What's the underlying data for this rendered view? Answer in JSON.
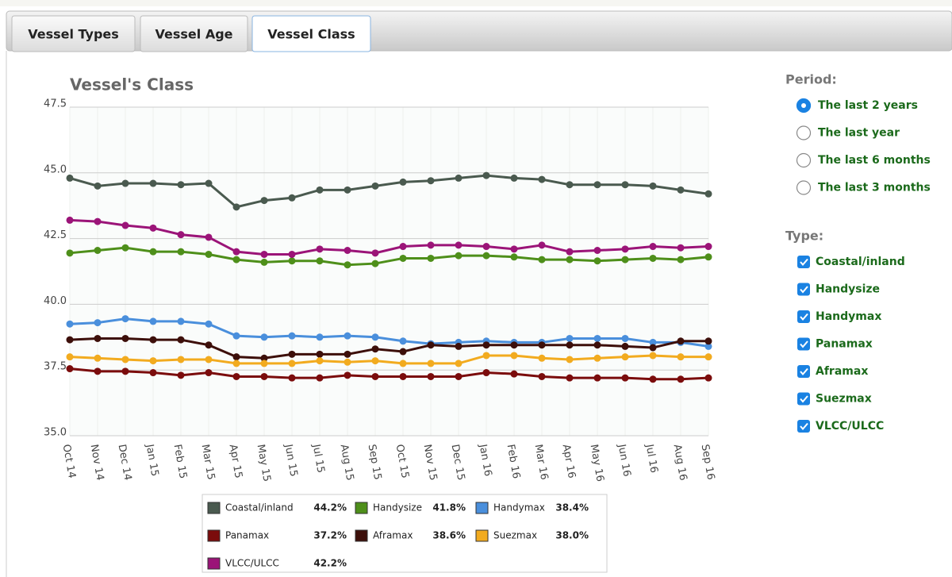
{
  "tabs": [
    "Vessel Types",
    "Vessel Age",
    "Vessel Class"
  ],
  "active_tab": 2,
  "period": {
    "label": "Period:",
    "options": [
      "The last 2 years",
      "The last year",
      "The last 6 months",
      "The last 3 months"
    ],
    "selected": 0
  },
  "type_filter": {
    "label": "Type:",
    "options": [
      "Coastal/inland",
      "Handysize",
      "Handymax",
      "Panamax",
      "Aframax",
      "Suezmax",
      "VLCC/ULCC"
    ]
  },
  "chart_data": {
    "type": "line",
    "title": "Vessel's Class",
    "categories": [
      "Oct 14",
      "Nov 14",
      "Dec 14",
      "Jan 15",
      "Feb 15",
      "Mar 15",
      "Apr 15",
      "May 15",
      "Jun 15",
      "Jul 15",
      "Aug 15",
      "Sep 15",
      "Oct 15",
      "Nov 15",
      "Dec 15",
      "Jan 16",
      "Feb 16",
      "Mar 16",
      "Apr 16",
      "May 16",
      "Jun 16",
      "Jul 16",
      "Aug 16",
      "Sep 16"
    ],
    "ylim": [
      35,
      47.5
    ],
    "yticks": [
      {
        "value": 35,
        "label": "35.0"
      },
      37.5,
      {
        "value": 40,
        "label": "40.0"
      },
      42.5,
      {
        "value": 45,
        "label": "45.0"
      },
      47.5
    ],
    "grid": true,
    "series": [
      {
        "name": "Coastal/inland",
        "color": "#4a5a4f",
        "legend_value": "44.2%",
        "values": [
          44.8,
          44.5,
          44.6,
          44.6,
          44.55,
          44.6,
          43.7,
          43.95,
          44.05,
          44.35,
          44.35,
          44.5,
          44.65,
          44.7,
          44.8,
          44.9,
          44.8,
          44.75,
          44.55,
          44.55,
          44.55,
          44.5,
          44.35,
          44.2
        ]
      },
      {
        "name": "Handysize",
        "color": "#4e8f1a",
        "legend_value": "41.8%",
        "values": [
          41.95,
          42.05,
          42.15,
          42.0,
          42.0,
          41.9,
          41.7,
          41.6,
          41.65,
          41.65,
          41.5,
          41.55,
          41.75,
          41.75,
          41.85,
          41.85,
          41.8,
          41.7,
          41.7,
          41.65,
          41.7,
          41.75,
          41.7,
          41.8
        ]
      },
      {
        "name": "Handymax",
        "color": "#4a8fdc",
        "legend_value": "38.4%",
        "values": [
          39.25,
          39.3,
          39.45,
          39.35,
          39.35,
          39.25,
          38.8,
          38.75,
          38.8,
          38.75,
          38.8,
          38.75,
          38.6,
          38.5,
          38.55,
          38.6,
          38.55,
          38.55,
          38.7,
          38.7,
          38.7,
          38.55,
          38.55,
          38.4
        ]
      },
      {
        "name": "Panamax",
        "color": "#7b0c0c",
        "legend_value": "37.2%",
        "values": [
          37.55,
          37.45,
          37.45,
          37.4,
          37.3,
          37.4,
          37.25,
          37.25,
          37.2,
          37.2,
          37.3,
          37.25,
          37.25,
          37.25,
          37.25,
          37.4,
          37.35,
          37.25,
          37.2,
          37.2,
          37.2,
          37.15,
          37.15,
          37.2
        ]
      },
      {
        "name": "Aframax",
        "color": "#3d0f0a",
        "legend_value": "38.6%",
        "values": [
          38.65,
          38.7,
          38.7,
          38.65,
          38.65,
          38.45,
          38.0,
          37.95,
          38.1,
          38.1,
          38.1,
          38.3,
          38.2,
          38.45,
          38.4,
          38.45,
          38.45,
          38.45,
          38.45,
          38.45,
          38.4,
          38.35,
          38.6,
          38.6
        ]
      },
      {
        "name": "Suezmax",
        "color": "#f2ab1f",
        "legend_value": "38.0%",
        "values": [
          38.0,
          37.95,
          37.9,
          37.85,
          37.9,
          37.9,
          37.75,
          37.75,
          37.75,
          37.85,
          37.8,
          37.85,
          37.75,
          37.75,
          37.75,
          38.05,
          38.05,
          37.95,
          37.9,
          37.95,
          38.0,
          38.05,
          38.0,
          38.0
        ]
      },
      {
        "name": "VLCC/ULCC",
        "color": "#9b1478",
        "legend_value": "42.2%",
        "values": [
          43.2,
          43.15,
          43.0,
          42.9,
          42.65,
          42.55,
          42.0,
          41.9,
          41.9,
          42.1,
          42.05,
          41.95,
          42.2,
          42.25,
          42.25,
          42.2,
          42.1,
          42.25,
          42.0,
          42.05,
          42.1,
          42.2,
          42.15,
          42.2
        ]
      }
    ]
  }
}
